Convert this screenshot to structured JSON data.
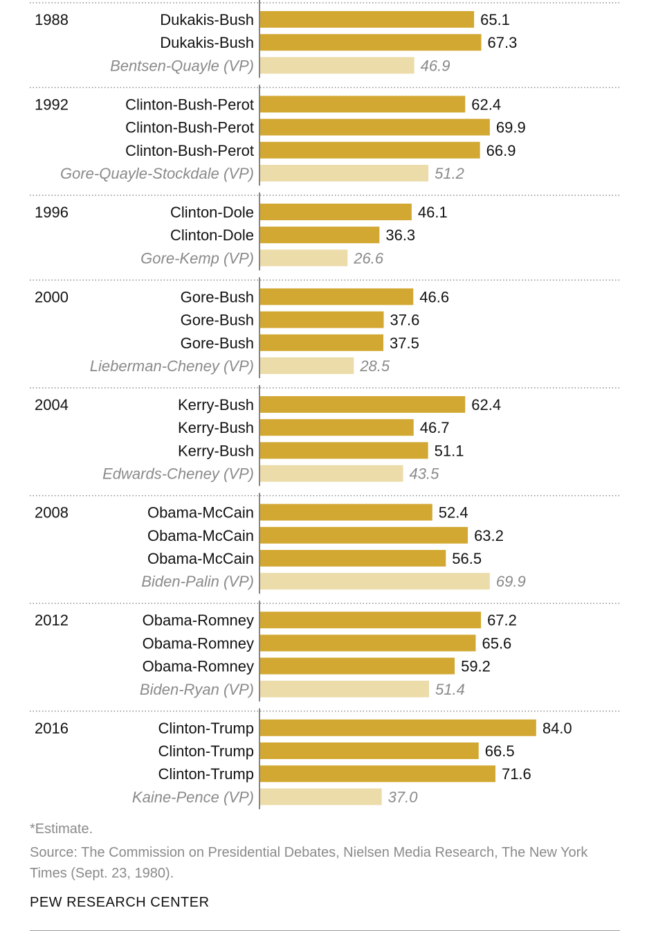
{
  "chart_data": {
    "type": "bar",
    "orientation": "horizontal",
    "colors": {
      "presidential": "#d2a832",
      "vice_presidential": "#ecdcaa"
    },
    "groups": [
      {
        "year": "1988",
        "rows": [
          {
            "label": "Dukakis-Bush",
            "value": 65.1,
            "vp": false
          },
          {
            "label": "Dukakis-Bush",
            "value": 67.3,
            "vp": false
          },
          {
            "label": "Bentsen-Quayle (VP)",
            "value": 46.9,
            "vp": true
          }
        ]
      },
      {
        "year": "1992",
        "rows": [
          {
            "label": "Clinton-Bush-Perot",
            "value": 62.4,
            "vp": false
          },
          {
            "label": "Clinton-Bush-Perot",
            "value": 69.9,
            "vp": false
          },
          {
            "label": "Clinton-Bush-Perot",
            "value": 66.9,
            "vp": false
          },
          {
            "label": "Gore-Quayle-Stockdale (VP)",
            "value": 51.2,
            "vp": true
          }
        ]
      },
      {
        "year": "1996",
        "rows": [
          {
            "label": "Clinton-Dole",
            "value": 46.1,
            "vp": false
          },
          {
            "label": "Clinton-Dole",
            "value": 36.3,
            "vp": false
          },
          {
            "label": "Gore-Kemp (VP)",
            "value": 26.6,
            "vp": true
          }
        ]
      },
      {
        "year": "2000",
        "rows": [
          {
            "label": "Gore-Bush",
            "value": 46.6,
            "vp": false
          },
          {
            "label": "Gore-Bush",
            "value": 37.6,
            "vp": false
          },
          {
            "label": "Gore-Bush",
            "value": 37.5,
            "vp": false
          },
          {
            "label": "Lieberman-Cheney (VP)",
            "value": 28.5,
            "vp": true
          }
        ]
      },
      {
        "year": "2004",
        "rows": [
          {
            "label": "Kerry-Bush",
            "value": 62.4,
            "vp": false
          },
          {
            "label": "Kerry-Bush",
            "value": 46.7,
            "vp": false
          },
          {
            "label": "Kerry-Bush",
            "value": 51.1,
            "vp": false
          },
          {
            "label": "Edwards-Cheney (VP)",
            "value": 43.5,
            "vp": true
          }
        ]
      },
      {
        "year": "2008",
        "rows": [
          {
            "label": "Obama-McCain",
            "value": 52.4,
            "vp": false
          },
          {
            "label": "Obama-McCain",
            "value": 63.2,
            "vp": false
          },
          {
            "label": "Obama-McCain",
            "value": 56.5,
            "vp": false
          },
          {
            "label": "Biden-Palin (VP)",
            "value": 69.9,
            "vp": true
          }
        ]
      },
      {
        "year": "2012",
        "rows": [
          {
            "label": "Obama-Romney",
            "value": 67.2,
            "vp": false
          },
          {
            "label": "Obama-Romney",
            "value": 65.6,
            "vp": false
          },
          {
            "label": "Obama-Romney",
            "value": 59.2,
            "vp": false
          },
          {
            "label": "Biden-Ryan (VP)",
            "value": 51.4,
            "vp": true
          }
        ]
      },
      {
        "year": "2016",
        "rows": [
          {
            "label": "Clinton-Trump",
            "value": 84.0,
            "vp": false
          },
          {
            "label": "Clinton-Trump",
            "value": 66.5,
            "vp": false
          },
          {
            "label": "Clinton-Trump",
            "value": 71.6,
            "vp": false
          },
          {
            "label": "Kaine-Pence (VP)",
            "value": 37.0,
            "vp": true
          }
        ]
      }
    ]
  },
  "footnote": "*Estimate.",
  "source": "Source: The Commission on Presidential Debates, Nielsen Media Research, The New York Times (Sept. 23, 1980).",
  "credit": "PEW RESEARCH CENTER"
}
